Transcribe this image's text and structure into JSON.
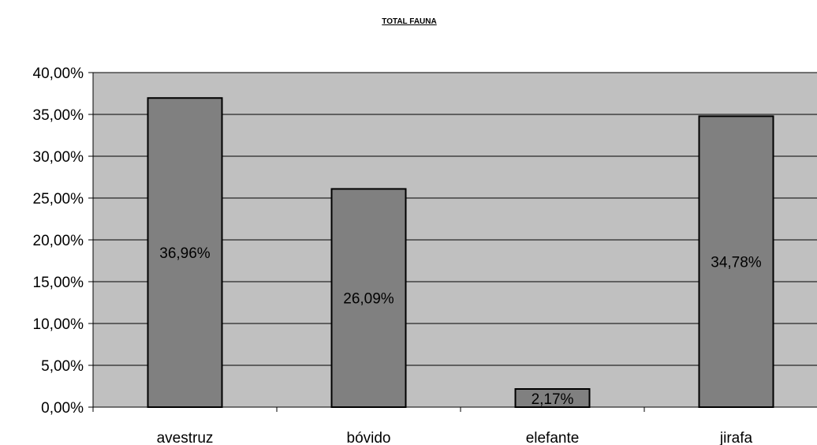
{
  "chart_data": {
    "type": "bar",
    "title": "TOTAL FAUNA",
    "xlabel": "",
    "ylabel": "",
    "categories": [
      "avestruz",
      "bóvido",
      "elefante",
      "jirafa"
    ],
    "values": [
      36.96,
      26.09,
      2.17,
      34.78
    ],
    "data_labels": [
      "36,96%",
      "26,09%",
      "2,17%",
      "34,78%"
    ],
    "ylim": [
      0,
      40
    ],
    "y_ticks": [
      0,
      5,
      10,
      15,
      20,
      25,
      30,
      35,
      40
    ],
    "y_tick_labels": [
      "0,00%",
      "5,00%",
      "10,00%",
      "15,00%",
      "20,00%",
      "25,00%",
      "30,00%",
      "35,00%",
      "40,00%"
    ],
    "grid": true,
    "legend": "none",
    "colors": {
      "plot_background": "#c0c0c0",
      "bar_fill": "#808080",
      "bar_stroke": "#000000",
      "gridline": "#000000"
    }
  }
}
